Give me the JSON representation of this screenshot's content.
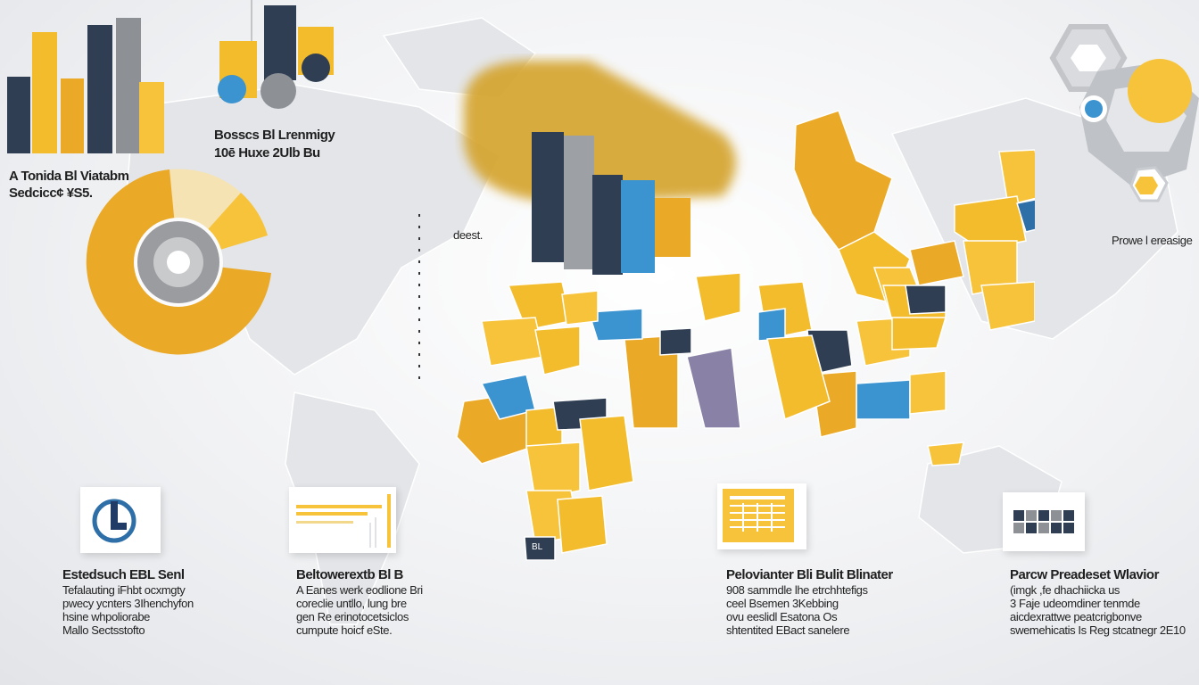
{
  "colors": {
    "yellow": "#f6c33a",
    "amber": "#eba928",
    "navy": "#2f3e52",
    "grey": "#8d9196",
    "blue": "#3b93cf",
    "land": "#dcdfe3"
  },
  "top_left_chart_label": [
    "Bosscs Bl Lrenmigy",
    "10ē Huxe 2Ulb Bu"
  ],
  "donut_label": [
    "A Tonida Bl Viatabm",
    "Sedcicc¢ ¥S5."
  ],
  "map_small_label": "deest.",
  "right_label": "Prowe l ereasige",
  "map_tag": "BL",
  "info_blocks": [
    {
      "title": "Estedsuch EBL Senl",
      "lines": [
        "Tefalauting iFhbt ocxmgty",
        "pwecy ycnters 3Ihenchyfon",
        "hsine whpoliorabe",
        "Mallo Sectsstofto"
      ],
      "icon": "logo-card-icon"
    },
    {
      "title": "Beltowerextb Bl B",
      "lines": [
        "A Eanes werk eodlione Bri",
        "coreclie untllo, lung bre",
        "gen Re erinotocetsiclos",
        "cumpute hoicf eSte."
      ],
      "icon": "bar-card-icon"
    },
    {
      "title": "Pelovianter Bli Bulit Blinater",
      "lines": [
        "908 sammdle lhe etrchhtefigs",
        "ceel Bsemen 3Kebbing",
        "ovu eeslidl Esatona Os",
        "shtentited EBact sanelere"
      ],
      "icon": "calendar-card-icon"
    },
    {
      "title": "Parcw Preadeset Wlavior",
      "lines": [
        "(imgk ,fe dhachiicka us",
        "3 Faje udeomdiner tenmde",
        "aicdexrattwe peatcrigbonve",
        "swemehicatis Is Reg stcatnegr 2E10"
      ],
      "icon": "grid-card-icon"
    }
  ]
}
